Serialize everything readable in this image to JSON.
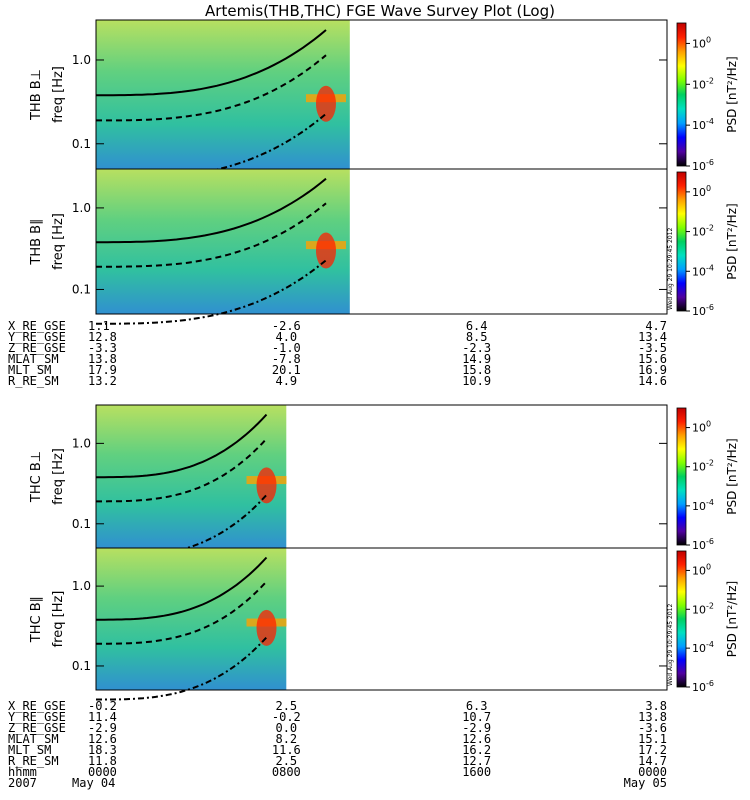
{
  "chart_data": {
    "type": "heatmap",
    "title": "Artemis(THB,THC) FGE Wave Survey Plot (Log)",
    "panels": [
      {
        "probe": "THB",
        "component": "perp",
        "label": "THB B⊥",
        "ylabel": "freq [Hz]",
        "data_end_hhmm": "1040",
        "line_peak_hhmm": "0940"
      },
      {
        "probe": "THB",
        "component": "par",
        "label": "THB B∥",
        "ylabel": "freq [Hz]",
        "data_end_hhmm": "1040",
        "line_peak_hhmm": "0940"
      },
      {
        "probe": "THC",
        "component": "perp",
        "label": "THC B⊥",
        "ylabel": "freq [Hz]",
        "data_end_hhmm": "0800",
        "line_peak_hhmm": "0710"
      },
      {
        "probe": "THC",
        "component": "par",
        "label": "THC B∥",
        "ylabel": "freq [Hz]",
        "data_end_hhmm": "0800",
        "line_peak_hhmm": "0710"
      }
    ],
    "yscale": "log",
    "ylim_hz": [
      0.05,
      3.0
    ],
    "ytick_values": [
      0.1,
      1.0
    ],
    "ytick_labels": [
      "0.1",
      "1.0"
    ],
    "xlim_hhmm": [
      "0000",
      "2400"
    ],
    "colorbar": {
      "label": "PSD [nT²/Hz]",
      "scale": "log",
      "range": [
        1e-06,
        10
      ],
      "ticks": [
        {
          "base": "10",
          "exp": "0"
        },
        {
          "base": "10",
          "exp": "-2"
        },
        {
          "base": "10",
          "exp": "-4"
        },
        {
          "base": "10",
          "exp": "-6"
        }
      ],
      "colors": [
        "#000000",
        "#5000a0",
        "#0000ff",
        "#00a0ff",
        "#00e0c0",
        "#00d060",
        "#80ff00",
        "#ffff00",
        "#ffa000",
        "#ff2000",
        "#c00000"
      ]
    },
    "orbit_blocks": [
      {
        "rows": [
          {
            "label": "X_RE_GSE",
            "values": [
              "1.1",
              "-2.6",
              "6.4",
              "4.7"
            ]
          },
          {
            "label": "Y_RE_GSE",
            "values": [
              "12.8",
              "4.0",
              "8.5",
              "13.4"
            ]
          },
          {
            "label": "Z_RE_GSE",
            "values": [
              "-3.3",
              "-1.0",
              "-2.3",
              "-3.5"
            ]
          },
          {
            "label": "MLAT_SM",
            "values": [
              "13.8",
              "-7.8",
              "14.9",
              "15.6"
            ]
          },
          {
            "label": "MLT_SM",
            "values": [
              "17.9",
              "20.1",
              "15.8",
              "16.9"
            ]
          },
          {
            "label": "R_RE_SM",
            "values": [
              "13.2",
              "4.9",
              "10.9",
              "14.6"
            ]
          }
        ]
      },
      {
        "rows": [
          {
            "label": "X_RE_GSE",
            "values": [
              "-0.2",
              "2.5",
              "6.3",
              "3.8"
            ]
          },
          {
            "label": "Y_RE_GSE",
            "values": [
              "11.4",
              "-0.2",
              "10.7",
              "13.8"
            ]
          },
          {
            "label": "Z_RE_GSE",
            "values": [
              "-2.9",
              "0.0",
              "-2.9",
              "-3.6"
            ]
          },
          {
            "label": "MLAT_SM",
            "values": [
              "12.6",
              "8.2",
              "12.6",
              "15.1"
            ]
          },
          {
            "label": "MLT_SM",
            "values": [
              "18.3",
              "11.6",
              "16.2",
              "17.2"
            ]
          },
          {
            "label": "R_RE_SM",
            "values": [
              "11.8",
              "2.5",
              "12.7",
              "14.7"
            ]
          },
          {
            "label": "hhmm",
            "values": [
              "0000",
              "0800",
              "1600",
              "0000"
            ]
          }
        ]
      }
    ],
    "date_row": {
      "year": "2007",
      "start": "May 04",
      "end": "May 05"
    },
    "timestamp": "Wed Aug 29 10:29:45 2012"
  }
}
